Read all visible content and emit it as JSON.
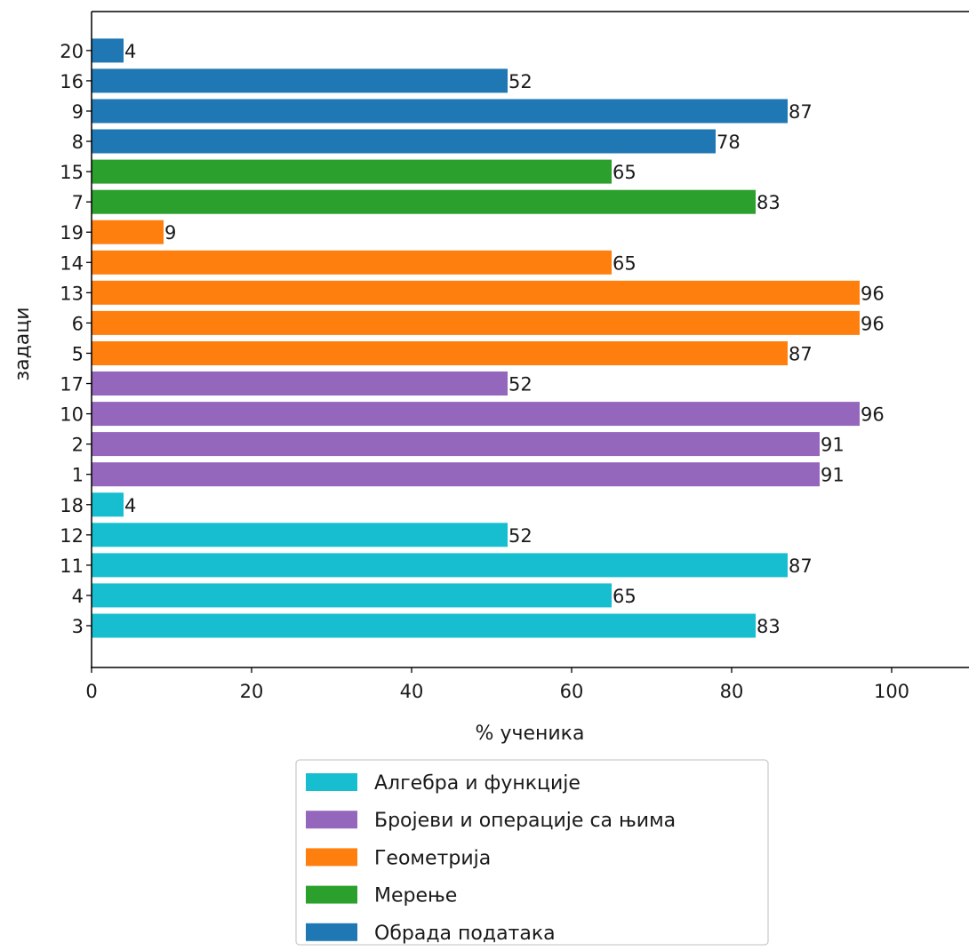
{
  "chart_data": {
    "type": "bar",
    "orientation": "horizontal",
    "title": "",
    "xlabel": "% ученика",
    "ylabel": "задаци",
    "xlim": [
      0,
      110
    ],
    "xticks": [
      "0",
      "20",
      "40",
      "60",
      "80",
      "100"
    ],
    "grid": false,
    "legend_position": "below the chart, centered",
    "legend": [
      {
        "label": "Алгебра и функције",
        "color": "#17becf"
      },
      {
        "label": "Бројеви и операције са њима",
        "color": "#9467bd"
      },
      {
        "label": "Геометрија",
        "color": "#ff7f0e"
      },
      {
        "label": "Мерење",
        "color": "#2ca02c"
      },
      {
        "label": "Обрада података",
        "color": "#1f77b4"
      }
    ],
    "bars": [
      {
        "task": "3",
        "value": 83,
        "category": "Алгебра и функције"
      },
      {
        "task": "4",
        "value": 65,
        "category": "Алгебра и функције"
      },
      {
        "task": "11",
        "value": 87,
        "category": "Алгебра и функције"
      },
      {
        "task": "12",
        "value": 52,
        "category": "Алгебра и функције"
      },
      {
        "task": "18",
        "value": 4,
        "category": "Алгебра и функције"
      },
      {
        "task": "1",
        "value": 91,
        "category": "Бројеви и операције са њима"
      },
      {
        "task": "2",
        "value": 91,
        "category": "Бројеви и операције са њима"
      },
      {
        "task": "10",
        "value": 96,
        "category": "Бројеви и операције са њима"
      },
      {
        "task": "17",
        "value": 52,
        "category": "Бројеви и операције са њима"
      },
      {
        "task": "5",
        "value": 87,
        "category": "Геометрија"
      },
      {
        "task": "6",
        "value": 96,
        "category": "Геометрија"
      },
      {
        "task": "13",
        "value": 96,
        "category": "Геометрија"
      },
      {
        "task": "14",
        "value": 65,
        "category": "Геометрија"
      },
      {
        "task": "19",
        "value": 9,
        "category": "Геометрија"
      },
      {
        "task": "7",
        "value": 83,
        "category": "Мерење"
      },
      {
        "task": "15",
        "value": 65,
        "category": "Мерење"
      },
      {
        "task": "8",
        "value": 78,
        "category": "Обрада података"
      },
      {
        "task": "9",
        "value": 87,
        "category": "Обрада података"
      },
      {
        "task": "16",
        "value": 52,
        "category": "Обрада података"
      },
      {
        "task": "20",
        "value": 4,
        "category": "Обрада података"
      }
    ]
  }
}
